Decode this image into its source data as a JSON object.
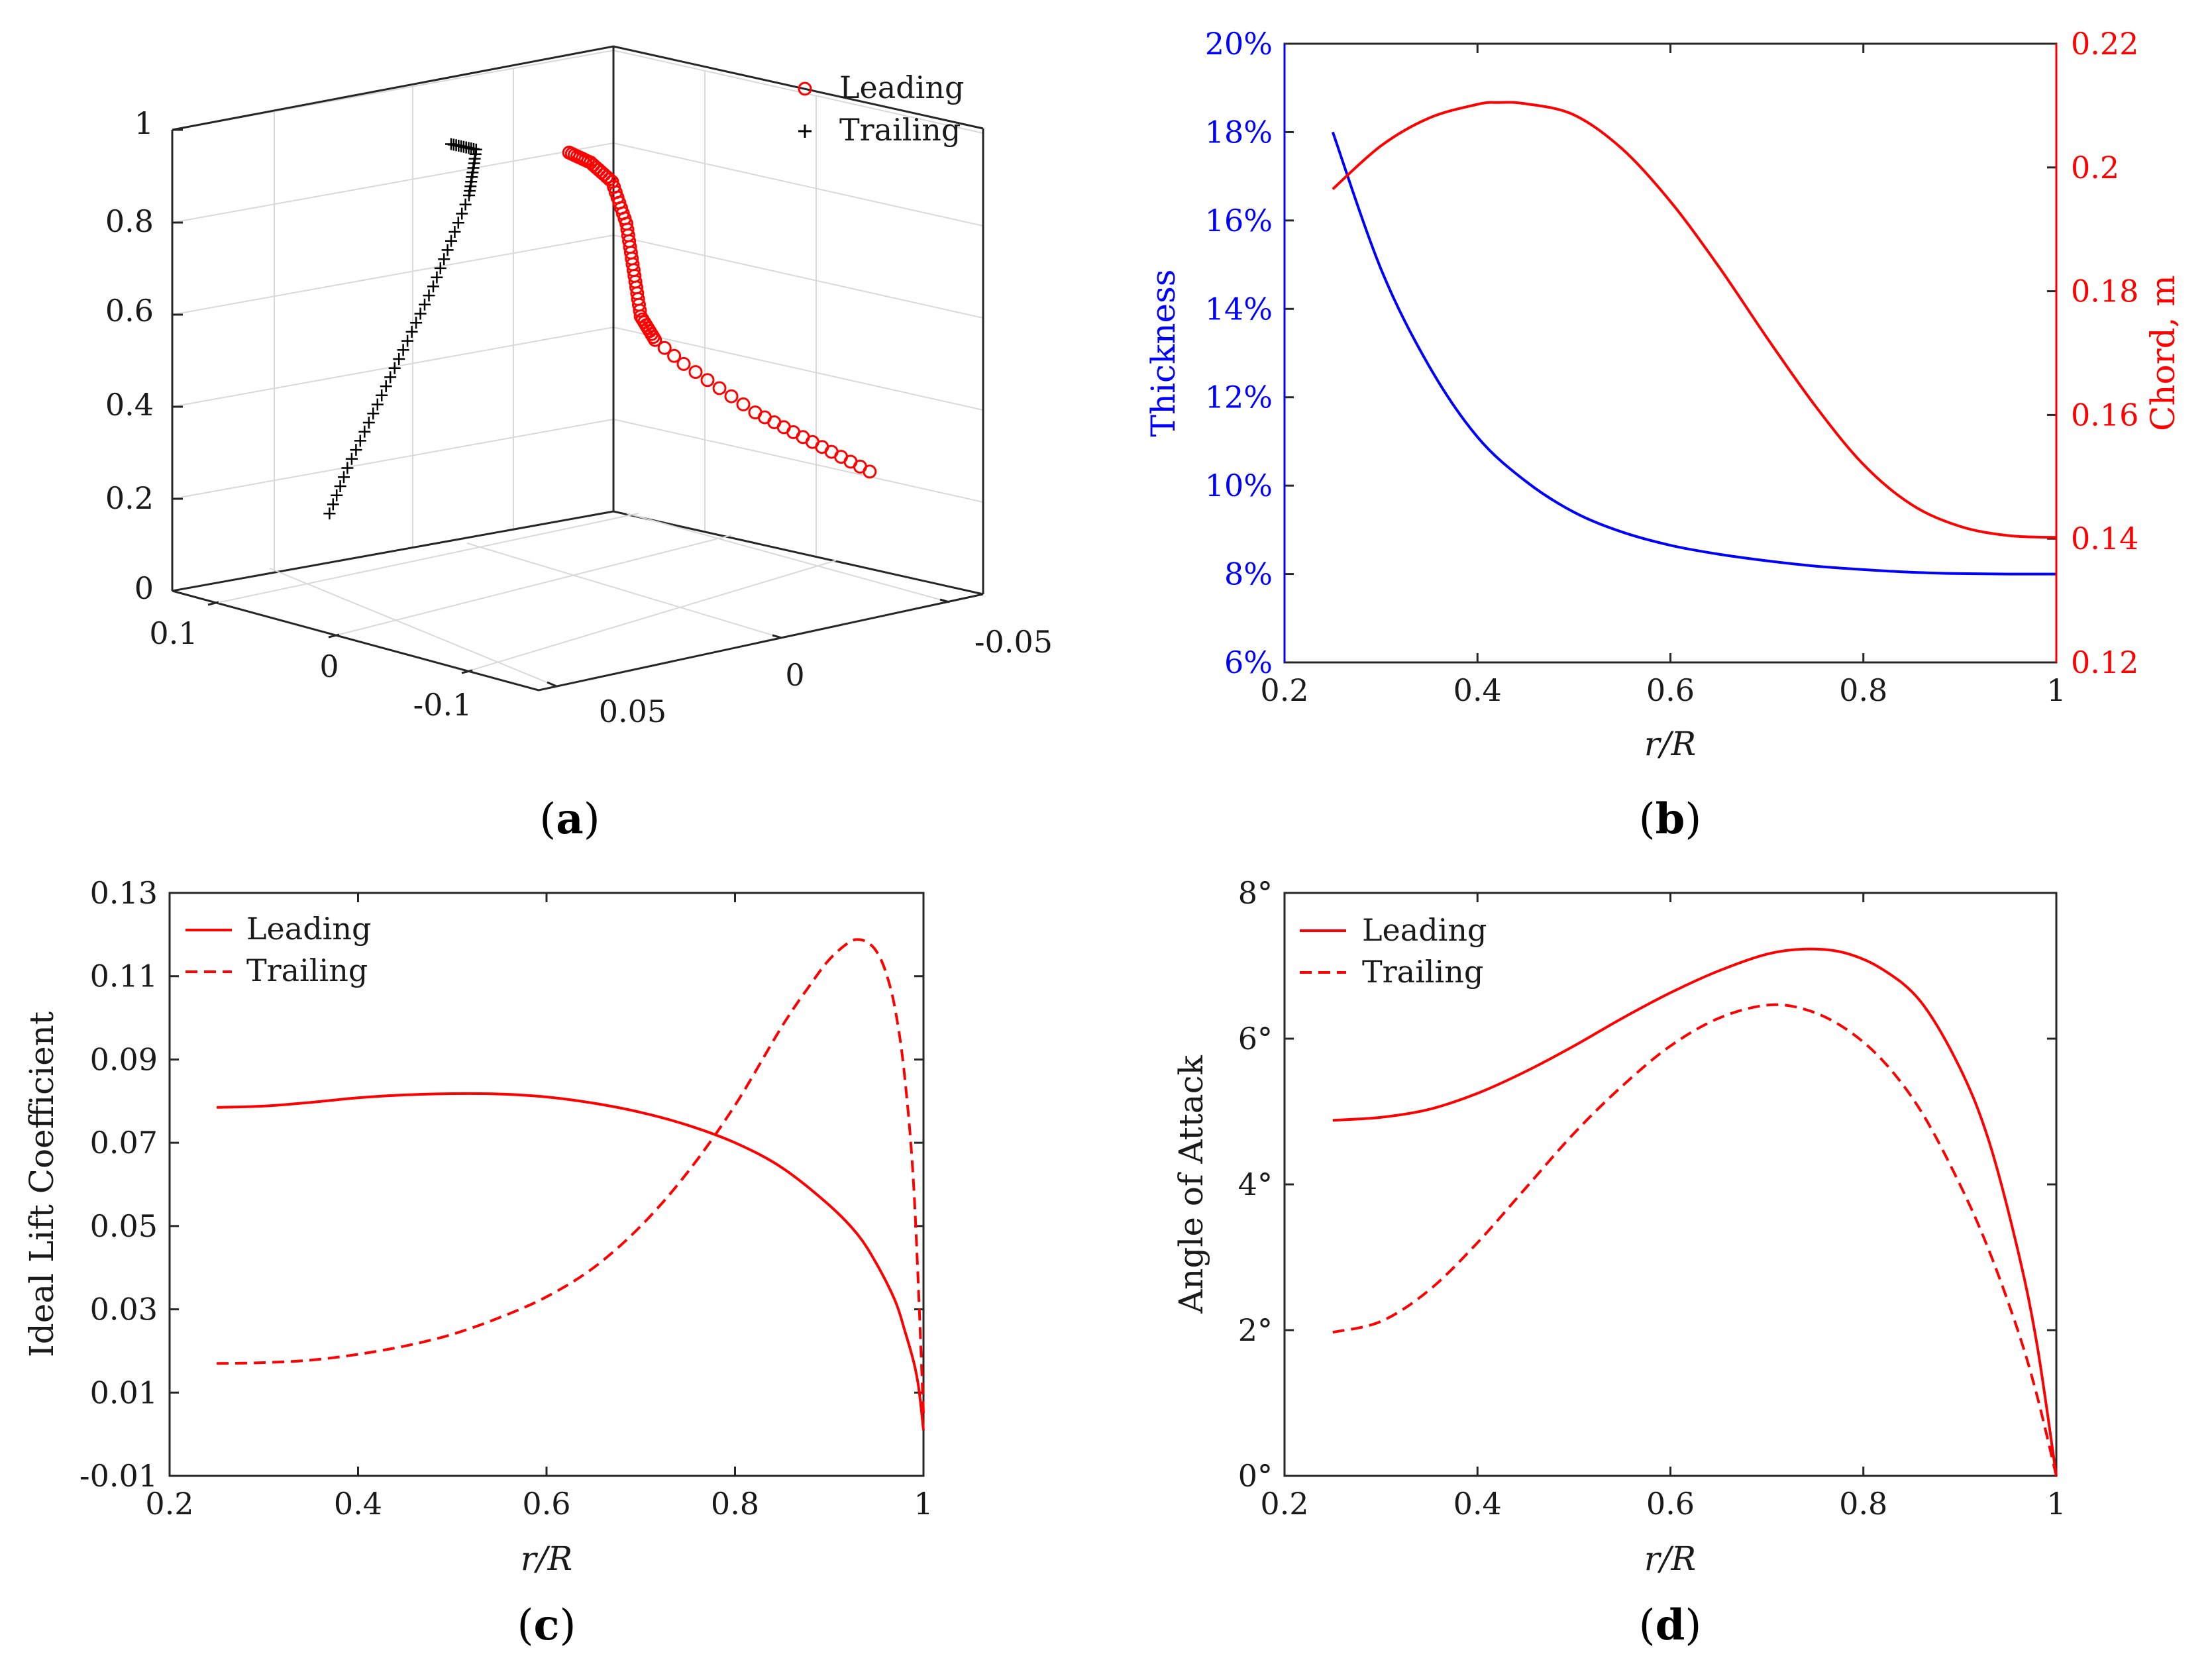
{
  "colors": {
    "red": "#ff0000",
    "blue": "#0000ff",
    "black": "#000000",
    "axis": "#262626"
  },
  "chart_data": [
    {
      "panel": "a",
      "type": "scatter",
      "caption_letter": "a",
      "title": "",
      "z_ticks": [
        "0",
        "0.2",
        "0.4",
        "0.6",
        "0.8",
        "1"
      ],
      "left_ticks": [
        "0.1",
        "0",
        "-0.1"
      ],
      "right_ticks": [
        "0.05",
        "0",
        "-0.05"
      ],
      "legend": [
        "Leading",
        "Trailing"
      ],
      "series": [
        {
          "name": "Leading",
          "marker": "circle",
          "color": "#ff0000",
          "points": [
            [
              -0.002,
              0.95
            ],
            [
              0.004,
              0.93
            ],
            [
              0.01,
              0.89
            ],
            [
              0.014,
              0.8
            ],
            [
              0.016,
              0.7
            ],
            [
              0.018,
              0.6
            ],
            [
              0.022,
              0.55
            ],
            [
              0.03,
              0.5
            ],
            [
              0.04,
              0.45
            ],
            [
              0.05,
              0.4
            ],
            [
              0.058,
              0.37
            ],
            [
              0.066,
              0.34
            ],
            [
              0.074,
              0.31
            ],
            [
              0.082,
              0.28
            ]
          ]
        },
        {
          "name": "Trailing",
          "marker": "plus",
          "color": "#000000",
          "points": [
            [
              -0.035,
              0.96
            ],
            [
              -0.028,
              0.95
            ],
            [
              -0.03,
              0.85
            ],
            [
              -0.035,
              0.75
            ],
            [
              -0.04,
              0.65
            ],
            [
              -0.046,
              0.55
            ],
            [
              -0.052,
              0.45
            ],
            [
              -0.058,
              0.35
            ],
            [
              -0.064,
              0.25
            ],
            [
              -0.069,
              0.15
            ]
          ]
        }
      ]
    },
    {
      "panel": "b",
      "type": "line",
      "caption_letter": "b",
      "xlabel": "r/R",
      "ylabel": "Thickness",
      "ylabel_right": "Chord, m",
      "xlim": [
        0.2,
        1
      ],
      "ylim": [
        6,
        20
      ],
      "ylim_right": [
        0.12,
        0.22
      ],
      "x_ticks": [
        "0.2",
        "0.4",
        "0.6",
        "0.8",
        "1"
      ],
      "y_ticks": [
        "6%",
        "8%",
        "10%",
        "12%",
        "14%",
        "16%",
        "18%",
        "20%"
      ],
      "y_ticks_right": [
        "0.12",
        "0.14",
        "0.16",
        "0.18",
        "0.2",
        "0.22"
      ],
      "series": [
        {
          "name": "Thickness",
          "axis": "left",
          "color": "#0000ff",
          "x": [
            0.25,
            0.3,
            0.35,
            0.4,
            0.45,
            0.5,
            0.55,
            0.6,
            0.65,
            0.7,
            0.75,
            0.8,
            0.85,
            0.9,
            0.95,
            1.0
          ],
          "y": [
            18.0,
            14.9,
            12.7,
            11.1,
            10.1,
            9.4,
            8.95,
            8.65,
            8.45,
            8.3,
            8.18,
            8.1,
            8.04,
            8.01,
            8.0,
            8.0
          ]
        },
        {
          "name": "Chord",
          "axis": "right",
          "color": "#ff0000",
          "x": [
            0.25,
            0.3,
            0.35,
            0.4,
            0.42,
            0.45,
            0.5,
            0.55,
            0.6,
            0.65,
            0.7,
            0.75,
            0.8,
            0.85,
            0.9,
            0.95,
            1.0
          ],
          "y": [
            0.1965,
            0.2035,
            0.208,
            0.2102,
            0.2105,
            0.2103,
            0.2085,
            0.203,
            0.1945,
            0.184,
            0.1725,
            0.1615,
            0.152,
            0.1455,
            0.142,
            0.1405,
            0.1402
          ]
        }
      ]
    },
    {
      "panel": "c",
      "type": "line",
      "caption_letter": "c",
      "xlabel": "r/R",
      "ylabel": "Ideal Lift Coefficient",
      "xlim": [
        0.2,
        1
      ],
      "ylim": [
        -0.01,
        0.13
      ],
      "x_ticks": [
        "0.2",
        "0.4",
        "0.6",
        "0.8",
        "1"
      ],
      "y_ticks": [
        "-0.01",
        "0.01",
        "0.03",
        "0.05",
        "0.07",
        "0.09",
        "0.11",
        "0.13"
      ],
      "legend": [
        "Leading",
        "Trailing"
      ],
      "series": [
        {
          "name": "Leading",
          "style": "solid",
          "color": "#ff0000",
          "x": [
            0.25,
            0.3,
            0.35,
            0.4,
            0.45,
            0.5,
            0.55,
            0.6,
            0.65,
            0.7,
            0.75,
            0.8,
            0.85,
            0.9,
            0.93,
            0.95,
            0.97,
            0.98,
            0.99,
            0.995,
            1.0
          ],
          "y": [
            0.0785,
            0.0788,
            0.0797,
            0.0808,
            0.0815,
            0.0818,
            0.0817,
            0.081,
            0.0795,
            0.0773,
            0.0742,
            0.07,
            0.064,
            0.055,
            0.048,
            0.041,
            0.032,
            0.025,
            0.017,
            0.011,
            0.001
          ]
        },
        {
          "name": "Trailing",
          "style": "dashed",
          "color": "#ff0000",
          "x": [
            0.25,
            0.3,
            0.35,
            0.4,
            0.45,
            0.5,
            0.55,
            0.6,
            0.65,
            0.7,
            0.75,
            0.8,
            0.85,
            0.88,
            0.9,
            0.92,
            0.93,
            0.94,
            0.95,
            0.96,
            0.97,
            0.98,
            0.99,
            1.0
          ],
          "y": [
            0.017,
            0.0172,
            0.0178,
            0.0192,
            0.0212,
            0.024,
            0.028,
            0.033,
            0.04,
            0.05,
            0.063,
            0.079,
            0.098,
            0.108,
            0.114,
            0.118,
            0.1188,
            0.1182,
            0.116,
            0.111,
            0.102,
            0.086,
            0.058,
            0.005
          ]
        }
      ]
    },
    {
      "panel": "d",
      "type": "line",
      "caption_letter": "d",
      "xlabel": "r/R",
      "ylabel": "Angle of Attack",
      "xlim": [
        0.2,
        1
      ],
      "ylim": [
        0,
        8
      ],
      "x_ticks": [
        "0.2",
        "0.4",
        "0.6",
        "0.8",
        "1"
      ],
      "y_ticks": [
        "0°",
        "2°",
        "4°",
        "6°",
        "8°"
      ],
      "legend": [
        "Leading",
        "Trailing"
      ],
      "series": [
        {
          "name": "Leading",
          "style": "solid",
          "color": "#ff0000",
          "x": [
            0.25,
            0.3,
            0.35,
            0.4,
            0.45,
            0.5,
            0.55,
            0.6,
            0.65,
            0.7,
            0.74,
            0.78,
            0.82,
            0.86,
            0.9,
            0.93,
            0.96,
            0.98,
            1.0
          ],
          "y": [
            4.88,
            4.92,
            5.03,
            5.25,
            5.55,
            5.9,
            6.28,
            6.63,
            6.93,
            7.16,
            7.23,
            7.18,
            6.95,
            6.5,
            5.6,
            4.6,
            3.1,
            1.8,
            0.0
          ]
        },
        {
          "name": "Trailing",
          "style": "dashed",
          "color": "#ff0000",
          "x": [
            0.25,
            0.3,
            0.35,
            0.4,
            0.45,
            0.5,
            0.55,
            0.6,
            0.65,
            0.7,
            0.74,
            0.78,
            0.82,
            0.86,
            0.9,
            0.93,
            0.96,
            0.98,
            1.0
          ],
          "y": [
            1.97,
            2.12,
            2.55,
            3.2,
            3.95,
            4.7,
            5.35,
            5.9,
            6.28,
            6.46,
            6.4,
            6.15,
            5.7,
            5.0,
            4.0,
            3.1,
            2.0,
            1.1,
            0.0
          ]
        }
      ]
    }
  ]
}
